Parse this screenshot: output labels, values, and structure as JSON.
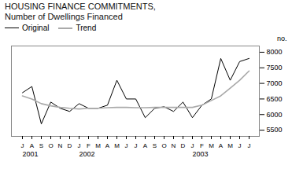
{
  "chart_data": {
    "type": "line",
    "title": "HOUSING FINANCE COMMITMENTS,",
    "subtitle": "Number of Dwellings Financed",
    "y_label": "no.",
    "categories": [
      "J",
      "A",
      "S",
      "O",
      "N",
      "D",
      "J",
      "F",
      "M",
      "A",
      "M",
      "J",
      "J",
      "A",
      "S",
      "O",
      "N",
      "D",
      "J",
      "F",
      "M",
      "A",
      "M",
      "J",
      "J"
    ],
    "series": [
      {
        "name": "Original",
        "color": "#000000",
        "values": [
          6700,
          6900,
          5700,
          6400,
          6200,
          6100,
          6350,
          6200,
          6200,
          6300,
          7100,
          6500,
          6500,
          5900,
          6200,
          6250,
          6100,
          6400,
          5900,
          6300,
          6500,
          7800,
          7100,
          7700,
          7800
        ]
      },
      {
        "name": "Trend",
        "color": "#aaaaaa",
        "values": [
          6600,
          6500,
          6350,
          6280,
          6230,
          6200,
          6180,
          6200,
          6200,
          6220,
          6230,
          6230,
          6220,
          6220,
          6230,
          6230,
          6230,
          6230,
          6230,
          6300,
          6450,
          6600,
          6850,
          7100,
          7400
        ]
      }
    ],
    "ylim": [
      5300,
      8200
    ],
    "yticks": [
      5500,
      6000,
      6500,
      7000,
      7500,
      8000
    ],
    "annotations": [
      {
        "text": "2001",
        "x": 0
      },
      {
        "text": "2002",
        "x": 6
      },
      {
        "text": "2003",
        "x": 18
      }
    ],
    "legend": "upper left",
    "grid": false
  }
}
